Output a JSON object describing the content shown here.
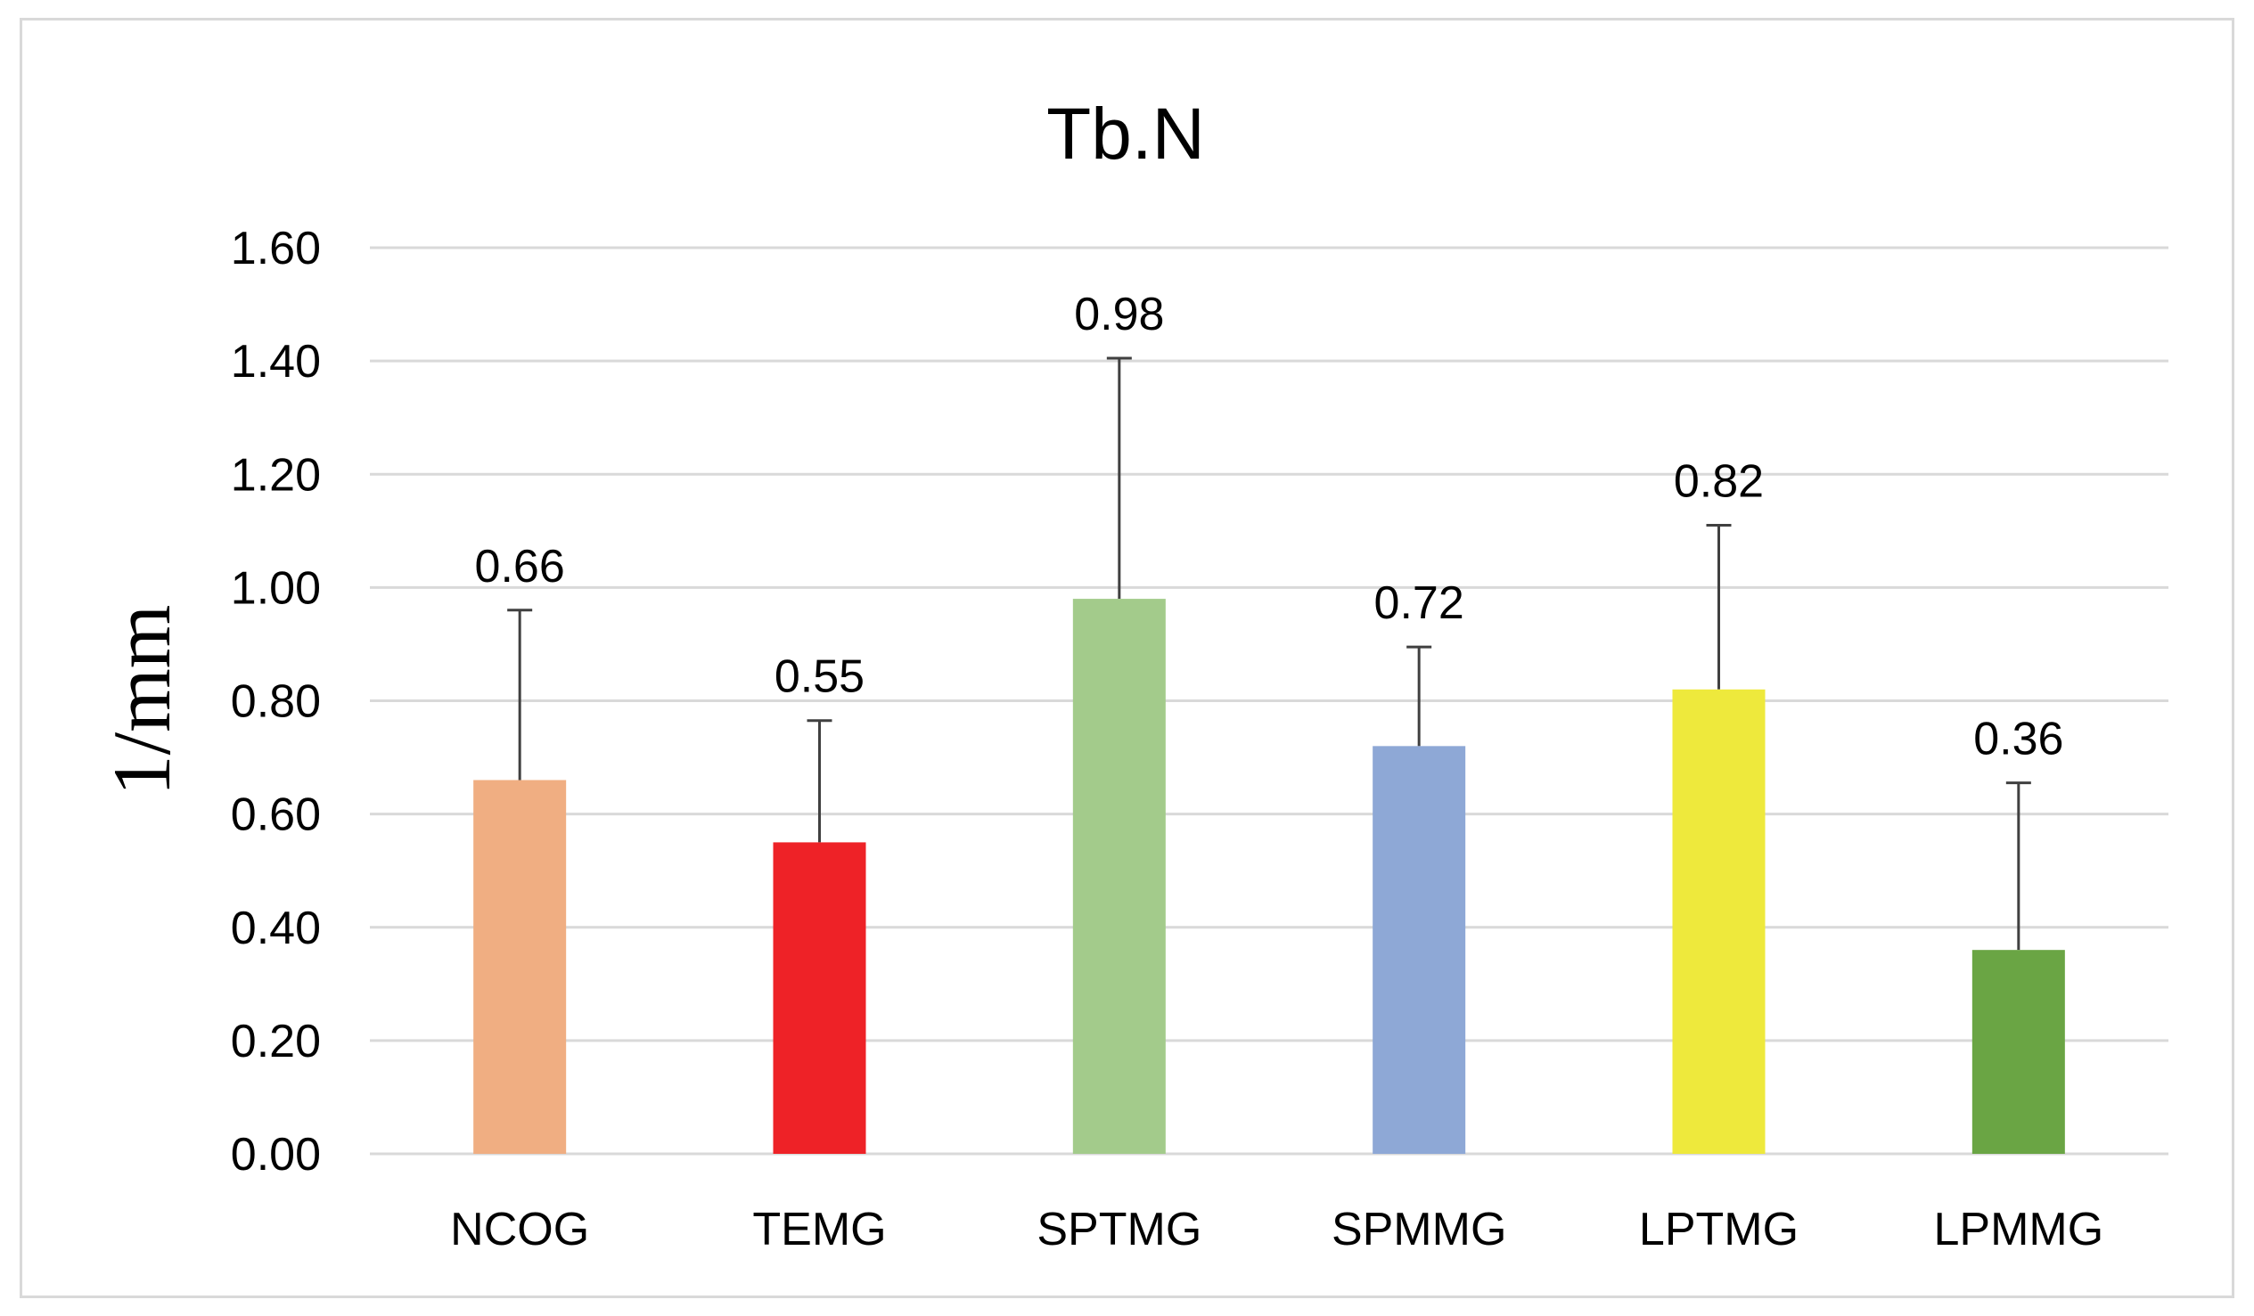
{
  "chart_data": {
    "type": "bar",
    "title": "Tb.N",
    "xlabel": "",
    "ylabel": "1/mm",
    "ylim": [
      0,
      1.6
    ],
    "yticks": [
      "0.00",
      "0.20",
      "0.40",
      "0.60",
      "0.80",
      "1.00",
      "1.20",
      "1.40",
      "1.60"
    ],
    "ytick_values": [
      0,
      0.2,
      0.4,
      0.6,
      0.8,
      1.0,
      1.2,
      1.4,
      1.6
    ],
    "grid": true,
    "categories": [
      "NCOG",
      "TEMG",
      "SPTMG",
      "SPMMG",
      "LPTMG",
      "LPMMG"
    ],
    "values": [
      0.66,
      0.55,
      0.98,
      0.72,
      0.82,
      0.36
    ],
    "value_labels": [
      "0.66",
      "0.55",
      "0.98",
      "0.72",
      "0.82",
      "0.36"
    ],
    "error_plus": [
      0.3,
      0.215,
      0.425,
      0.175,
      0.29,
      0.295
    ],
    "colors": [
      "#F0AE82",
      "#EE2227",
      "#A3CB8B",
      "#8EA8D6",
      "#EEE93C",
      "#6AA544"
    ]
  }
}
